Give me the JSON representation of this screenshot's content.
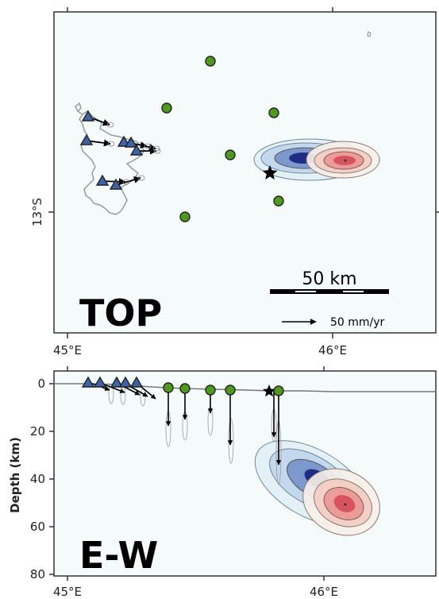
{
  "top_panel": {
    "label": "TOP",
    "x_ticks": [
      "45°E",
      "46°E"
    ],
    "y_ticks": [
      "13°S"
    ],
    "scale_bar_label": "50 km",
    "velocity_label": "50 mm/yr"
  },
  "ew_panel": {
    "label": "E-W",
    "x_ticks": [
      "45°E",
      "46°E"
    ],
    "y_axis_title": "Depth (km)",
    "y_ticks": [
      "0",
      "20",
      "40",
      "60",
      "80"
    ]
  },
  "colors": {
    "map_background": "#f5fbfb",
    "gnss_station": "#3f63a8",
    "seismometer": "#4f9a1e",
    "deflation_blue": "#1f2d86",
    "inflation_red": "#d6535f",
    "coastline": "#9a9a9a"
  },
  "legend_symbols": {
    "triangle": "gnss-station-icon",
    "circle": "seismometer-icon",
    "star": "eruption-site-icon",
    "arrow": "velocity-arrow-icon"
  }
}
